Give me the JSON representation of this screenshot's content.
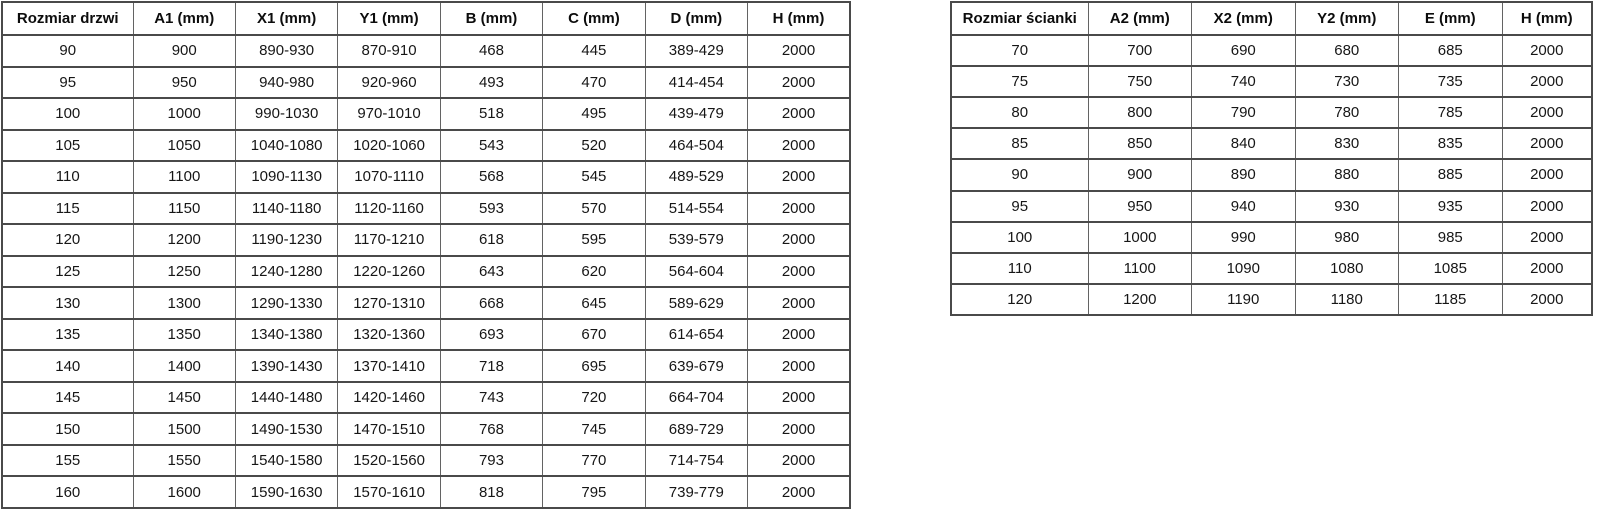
{
  "door_table": {
    "title": "Rozmiar drzwi",
    "headers": [
      "Rozmiar drzwi",
      "A1 (mm)",
      "X1 (mm)",
      "Y1 (mm)",
      "B (mm)",
      "C (mm)",
      "D (mm)",
      "H (mm)"
    ],
    "rows": [
      [
        "90",
        "900",
        "890-930",
        "870-910",
        "468",
        "445",
        "389-429",
        "2000"
      ],
      [
        "95",
        "950",
        "940-980",
        "920-960",
        "493",
        "470",
        "414-454",
        "2000"
      ],
      [
        "100",
        "1000",
        "990-1030",
        "970-1010",
        "518",
        "495",
        "439-479",
        "2000"
      ],
      [
        "105",
        "1050",
        "1040-1080",
        "1020-1060",
        "543",
        "520",
        "464-504",
        "2000"
      ],
      [
        "110",
        "1100",
        "1090-1130",
        "1070-1110",
        "568",
        "545",
        "489-529",
        "2000"
      ],
      [
        "115",
        "1150",
        "1140-1180",
        "1120-1160",
        "593",
        "570",
        "514-554",
        "2000"
      ],
      [
        "120",
        "1200",
        "1190-1230",
        "1170-1210",
        "618",
        "595",
        "539-579",
        "2000"
      ],
      [
        "125",
        "1250",
        "1240-1280",
        "1220-1260",
        "643",
        "620",
        "564-604",
        "2000"
      ],
      [
        "130",
        "1300",
        "1290-1330",
        "1270-1310",
        "668",
        "645",
        "589-629",
        "2000"
      ],
      [
        "135",
        "1350",
        "1340-1380",
        "1320-1360",
        "693",
        "670",
        "614-654",
        "2000"
      ],
      [
        "140",
        "1400",
        "1390-1430",
        "1370-1410",
        "718",
        "695",
        "639-679",
        "2000"
      ],
      [
        "145",
        "1450",
        "1440-1480",
        "1420-1460",
        "743",
        "720",
        "664-704",
        "2000"
      ],
      [
        "150",
        "1500",
        "1490-1530",
        "1470-1510",
        "768",
        "745",
        "689-729",
        "2000"
      ],
      [
        "155",
        "1550",
        "1540-1580",
        "1520-1560",
        "793",
        "770",
        "714-754",
        "2000"
      ],
      [
        "160",
        "1600",
        "1590-1630",
        "1570-1610",
        "818",
        "795",
        "739-779",
        "2000"
      ]
    ]
  },
  "wall_table": {
    "title": "Rozmiar ścianki",
    "headers": [
      "Rozmiar ścianki",
      "A2 (mm)",
      "X2 (mm)",
      "Y2 (mm)",
      "E (mm)",
      "H (mm)"
    ],
    "rows": [
      [
        "70",
        "700",
        "690",
        "680",
        "685",
        "2000"
      ],
      [
        "75",
        "750",
        "740",
        "730",
        "735",
        "2000"
      ],
      [
        "80",
        "800",
        "790",
        "780",
        "785",
        "2000"
      ],
      [
        "85",
        "850",
        "840",
        "830",
        "835",
        "2000"
      ],
      [
        "90",
        "900",
        "890",
        "880",
        "885",
        "2000"
      ],
      [
        "95",
        "950",
        "940",
        "930",
        "935",
        "2000"
      ],
      [
        "100",
        "1000",
        "990",
        "980",
        "985",
        "2000"
      ],
      [
        "110",
        "1100",
        "1090",
        "1080",
        "1085",
        "2000"
      ],
      [
        "120",
        "1200",
        "1190",
        "1180",
        "1185",
        "2000"
      ]
    ]
  },
  "colors": {
    "background": "#ffffff",
    "border_horizontal": "#4a4a4a",
    "border_vertical": "#636363",
    "text": "#161616"
  }
}
